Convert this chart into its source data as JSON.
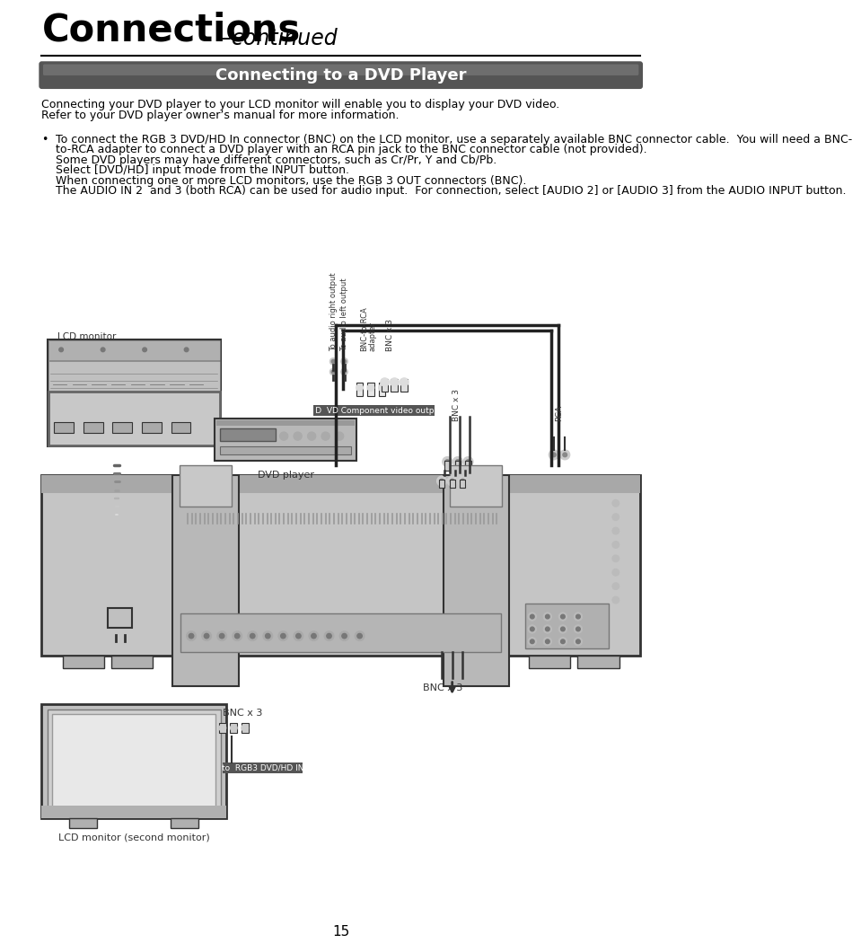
{
  "page_bg": "#ffffff",
  "title_bold": "Connections",
  "title_italic": "–continued",
  "section_bg_dark": "#5a5a5a",
  "section_bg_light": "#888888",
  "section_title": "Connecting to a DVD Player",
  "section_title_color": "#ffffff",
  "body_text_1": "Connecting your DVD player to your LCD monitor will enable you to display your DVD video.",
  "body_text_2": "Refer to your DVD player owner’s manual for more information.",
  "bullet_line_1": "To connect the RGB 3 DVD/HD In connector (BNC) on the LCD monitor, use a separately available BNC connector cable.  You will need a BNC-",
  "bullet_line_2": "to-RCA adapter to connect a DVD player with an RCA pin jack to the BNC connector cable (not provided).",
  "bullet_line_3": "Some DVD players may have different connectors, such as Cr/Pr, Y and Cb/Pb.",
  "bullet_line_4": "Select [DVD/HD] input mode from the INPUT button.",
  "bullet_line_5": "When connecting one or more LCD monitors, use the RGB 3 OUT connectors (BNC).",
  "bullet_line_6": "The AUDIO IN 2  and 3 (both RCA) can be used for audio input.  For connection, select [AUDIO 2] or [AUDIO 3] from the AUDIO INPUT button.",
  "page_number": "15",
  "label_lcd_monitor": "LCD monitor",
  "label_dvd_player": "DVD player",
  "label_bnc_x3": "BNC x 3",
  "label_bnc_adapter": "BNC-to-RCA\nadapter",
  "label_audio_right": "To audio right output",
  "label_audio_left": "To audio left output",
  "label_dvd_component": "To D  VD Component video output",
  "label_bnc_x3_mid": "BNC x 3",
  "label_rca": "RCA",
  "label_bnc_x3_bot": "BNC x 3",
  "label_rgb3_in": "to  RGB3 DVD/HD IN",
  "label_lcd_second": "LCD monitor (second monitor)",
  "text_color": "#000000",
  "diagram_dark": "#333333",
  "diagram_mid": "#777777",
  "diagram_light": "#aaaaaa",
  "diagram_very_light": "#cccccc",
  "cable_color": "#222222"
}
